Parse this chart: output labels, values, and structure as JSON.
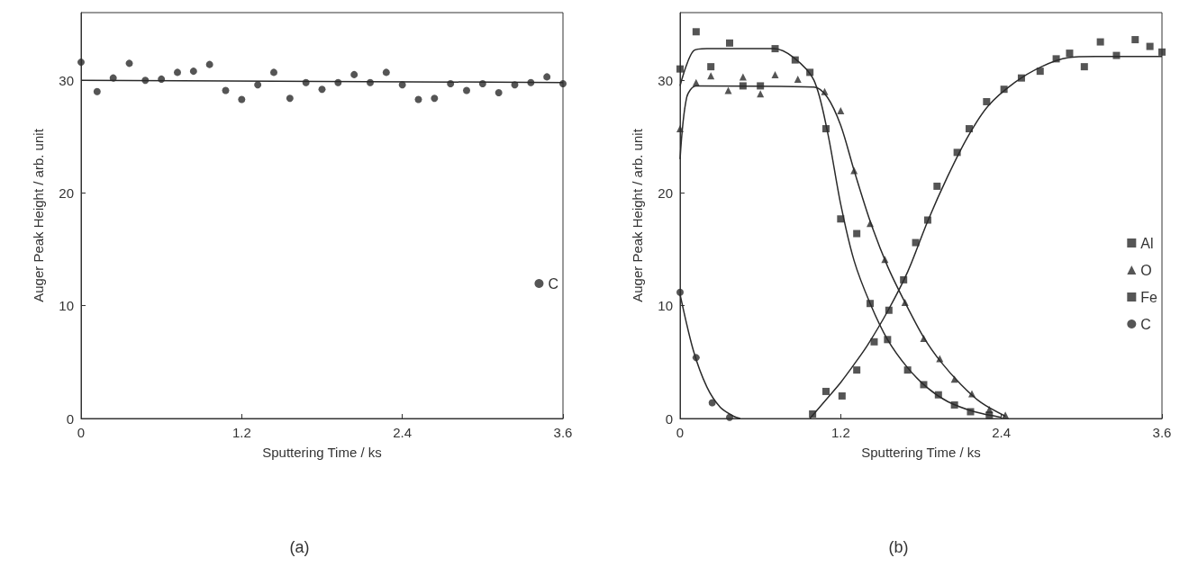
{
  "chart_data": [
    {
      "type": "scatter",
      "title": "(a)",
      "xlabel": "Sputtering Time / ks",
      "ylabel": "Auger Peak Height / arb. unit",
      "xlim": [
        0,
        3.6
      ],
      "xticks": [
        0,
        1.2,
        2.4,
        3.6
      ],
      "ylim": [
        0,
        36
      ],
      "yticks": [
        0,
        10,
        20,
        30
      ],
      "grid": false,
      "legend": "right",
      "series": [
        {
          "name": "C",
          "color": "#2a2a2a",
          "marker": "circle",
          "x": [
            0,
            0.12,
            0.24,
            0.36,
            0.48,
            0.6,
            0.72,
            0.84,
            0.96,
            1.08,
            1.2,
            1.32,
            1.44,
            1.56,
            1.68,
            1.8,
            1.92,
            2.04,
            2.16,
            2.28,
            2.4,
            2.52,
            2.64,
            2.76,
            2.88,
            3.0,
            3.12,
            3.24,
            3.36,
            3.48,
            3.6
          ],
          "values": [
            31.6,
            29.0,
            30.2,
            31.5,
            30.0,
            30.1,
            30.7,
            30.8,
            31.4,
            29.1,
            28.3,
            29.6,
            30.7,
            28.4,
            29.8,
            29.2,
            29.8,
            30.5,
            29.8,
            30.7,
            29.6,
            28.3,
            28.4,
            29.7,
            29.1,
            29.7,
            28.9,
            29.6,
            29.8,
            30.3,
            29.7
          ]
        },
        {
          "type": "line",
          "color": "#2a2a2a",
          "marker": "none",
          "x": [
            0,
            3.6
          ],
          "values": [
            30.0,
            29.8
          ]
        }
      ]
    },
    {
      "type": "scatter",
      "title": "(b)",
      "xlabel": "Sputtering Time / ks",
      "ylabel": "Auger Peak Height / arb. unit",
      "xlim": [
        0,
        3.6
      ],
      "xticks": [
        0,
        1.2,
        2.4,
        3.6
      ],
      "ylim": [
        0,
        36
      ],
      "yticks": [
        0,
        10,
        20,
        30
      ],
      "grid": false,
      "legend": "right",
      "series": [
        {
          "name": "Al",
          "color": "#2a2a2a",
          "marker": "square",
          "x": [
            0,
            0.12,
            0.23,
            0.37,
            0.47,
            0.6,
            0.71,
            0.86,
            0.97,
            1.09,
            1.2,
            1.32,
            1.42,
            1.55,
            1.7,
            1.82,
            1.93,
            2.05,
            2.17,
            2.31
          ],
          "values": [
            31.0,
            34.3,
            31.2,
            33.3,
            29.5,
            29.5,
            32.8,
            31.8,
            30.7,
            25.7,
            17.7,
            16.4,
            10.2,
            7.0,
            4.3,
            3.0,
            2.1,
            1.2,
            0.6,
            0.3
          ]
        },
        {
          "name": "O",
          "color": "#2a2a2a",
          "marker": "triangle",
          "x": [
            0,
            0.12,
            0.23,
            0.36,
            0.47,
            0.6,
            0.71,
            0.88,
            1.08,
            1.2,
            1.3,
            1.42,
            1.53,
            1.68,
            1.82,
            1.94,
            2.05,
            2.18,
            2.31,
            2.43
          ],
          "values": [
            25.7,
            29.8,
            30.4,
            29.1,
            30.3,
            28.8,
            30.5,
            30.1,
            29.0,
            27.3,
            22.0,
            17.3,
            14.1,
            10.3,
            7.1,
            5.3,
            3.5,
            2.2,
            0.8,
            0.3
          ]
        },
        {
          "name": "Fe",
          "color": "#2a2a2a",
          "marker": "square",
          "x": [
            0.99,
            1.09,
            1.21,
            1.32,
            1.45,
            1.56,
            1.67,
            1.76,
            1.85,
            1.92,
            2.07,
            2.16,
            2.29,
            2.42,
            2.55,
            2.69,
            2.81,
            2.91,
            3.02,
            3.14,
            3.26,
            3.4,
            3.51,
            3.6
          ],
          "values": [
            0.4,
            2.4,
            2.0,
            4.3,
            6.8,
            9.6,
            12.3,
            15.6,
            17.6,
            20.6,
            23.6,
            25.7,
            28.1,
            29.2,
            30.2,
            30.8,
            31.9,
            32.4,
            31.2,
            33.4,
            32.2,
            33.6,
            33.0,
            32.5
          ]
        },
        {
          "name": "C",
          "color": "#2a2a2a",
          "marker": "circle",
          "x": [
            0,
            0.12,
            0.24,
            0.37
          ],
          "values": [
            11.2,
            5.4,
            1.4,
            0.1
          ]
        },
        {
          "type": "line",
          "color": "#2a2a2a",
          "marker": "none",
          "x": [
            0,
            0.1,
            0.2,
            0.7,
            0.85,
            1.0,
            1.1,
            1.2,
            1.3,
            1.42,
            1.55,
            1.7,
            1.85,
            2.0,
            2.2,
            2.4
          ],
          "values": [
            29.5,
            32.6,
            32.8,
            32.8,
            32.0,
            30.0,
            25.5,
            19.0,
            14.0,
            10.2,
            7.0,
            4.5,
            2.7,
            1.5,
            0.6,
            0.1
          ]
        },
        {
          "type": "line",
          "color": "#2a2a2a",
          "marker": "none",
          "x": [
            0,
            0.05,
            0.12,
            1.0,
            1.1,
            1.2,
            1.3,
            1.42,
            1.55,
            1.68,
            1.82,
            1.95,
            2.1,
            2.25,
            2.43
          ],
          "values": [
            23.0,
            28.5,
            29.5,
            29.4,
            28.5,
            26.0,
            22.0,
            17.5,
            13.5,
            10.3,
            7.2,
            5.0,
            3.0,
            1.4,
            0.2
          ]
        },
        {
          "type": "line",
          "color": "#2a2a2a",
          "marker": "none",
          "x": [
            0.97,
            1.1,
            1.2,
            1.3,
            1.4,
            1.55,
            1.7,
            1.85,
            2.0,
            2.15,
            2.3,
            2.5,
            2.7,
            2.9,
            3.1,
            3.6
          ],
          "values": [
            0,
            1.8,
            3.2,
            4.8,
            6.5,
            9.5,
            13.0,
            17.5,
            21.5,
            25.0,
            27.7,
            29.8,
            31.2,
            32.0,
            32.1,
            32.1
          ]
        },
        {
          "type": "line",
          "color": "#2a2a2a",
          "marker": "none",
          "x": [
            0,
            0.1,
            0.2,
            0.3,
            0.4,
            0.45
          ],
          "values": [
            11.0,
            6.0,
            2.8,
            1.0,
            0.2,
            0
          ]
        }
      ]
    }
  ]
}
